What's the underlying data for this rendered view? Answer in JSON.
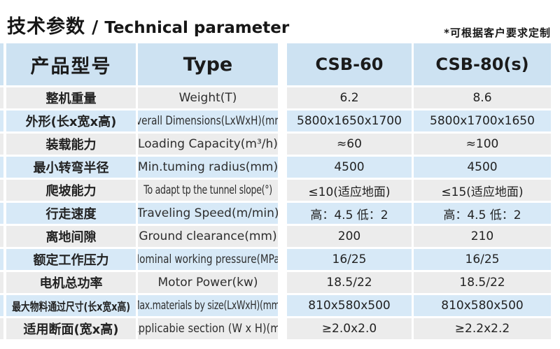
{
  "title": {
    "cn": "技术参数",
    "sep": "/",
    "en": "Technical parameter"
  },
  "note": "*可根据客户要求定制",
  "table": {
    "headers": {
      "model_cn": "产品型号",
      "type": "Type",
      "col1": "CSB-60",
      "col2": "CSB-80(s)"
    },
    "rows": [
      {
        "cn": "整机重量",
        "en": "Weight(T)",
        "v1": "6.2",
        "v2": "8.6"
      },
      {
        "cn": "外形(长x宽x高)",
        "en": "Overall Dimensions(LxWxH)(mm)",
        "v1": "5800x1650x1700",
        "v2": "5800x1700x1650"
      },
      {
        "cn": "装载能力",
        "en": "Loading Capacity(m³/h)",
        "v1": "≈60",
        "v2": "≈100"
      },
      {
        "cn": "最小转弯半径",
        "en": "Min.tuming radius(mm)",
        "v1": "4500",
        "v2": "4500"
      },
      {
        "cn": "爬坡能力",
        "en": "To adapt tp the tunnel slope(°)",
        "v1": "≤10(适应地面)",
        "v2": "≤15(适应地面)"
      },
      {
        "cn": "行走速度",
        "en": "Traveling Speed(m/min)",
        "v1": "高：4.5 低：2",
        "v2": "高：4.5 低：2"
      },
      {
        "cn": "离地间隙",
        "en": "Ground clearance(mm)",
        "v1": "200",
        "v2": "210"
      },
      {
        "cn": "额定工作压力",
        "en": "Nominal working pressure(MPa)",
        "v1": "16/25",
        "v2": "16/25"
      },
      {
        "cn": "电机总功率",
        "en": "Motor Power(kw)",
        "v1": "18.5/22",
        "v2": "18.5/22"
      },
      {
        "cn": "最大物料通过尺寸(长x宽x高)",
        "en": "Max.materials by size(LxWxH)(mm)",
        "v1": "810x580x500",
        "v2": "810x580x500"
      },
      {
        "cn": "适用断面(宽x高)",
        "en": "Applicabie section (W x H)(m)",
        "v1": "≥2.0x2.0",
        "v2": "≥2.2x2.2"
      }
    ]
  },
  "colors": {
    "header_blue": "#cde2f2",
    "row_blue": "#d7e9f7",
    "row_gray": "#ececec"
  }
}
